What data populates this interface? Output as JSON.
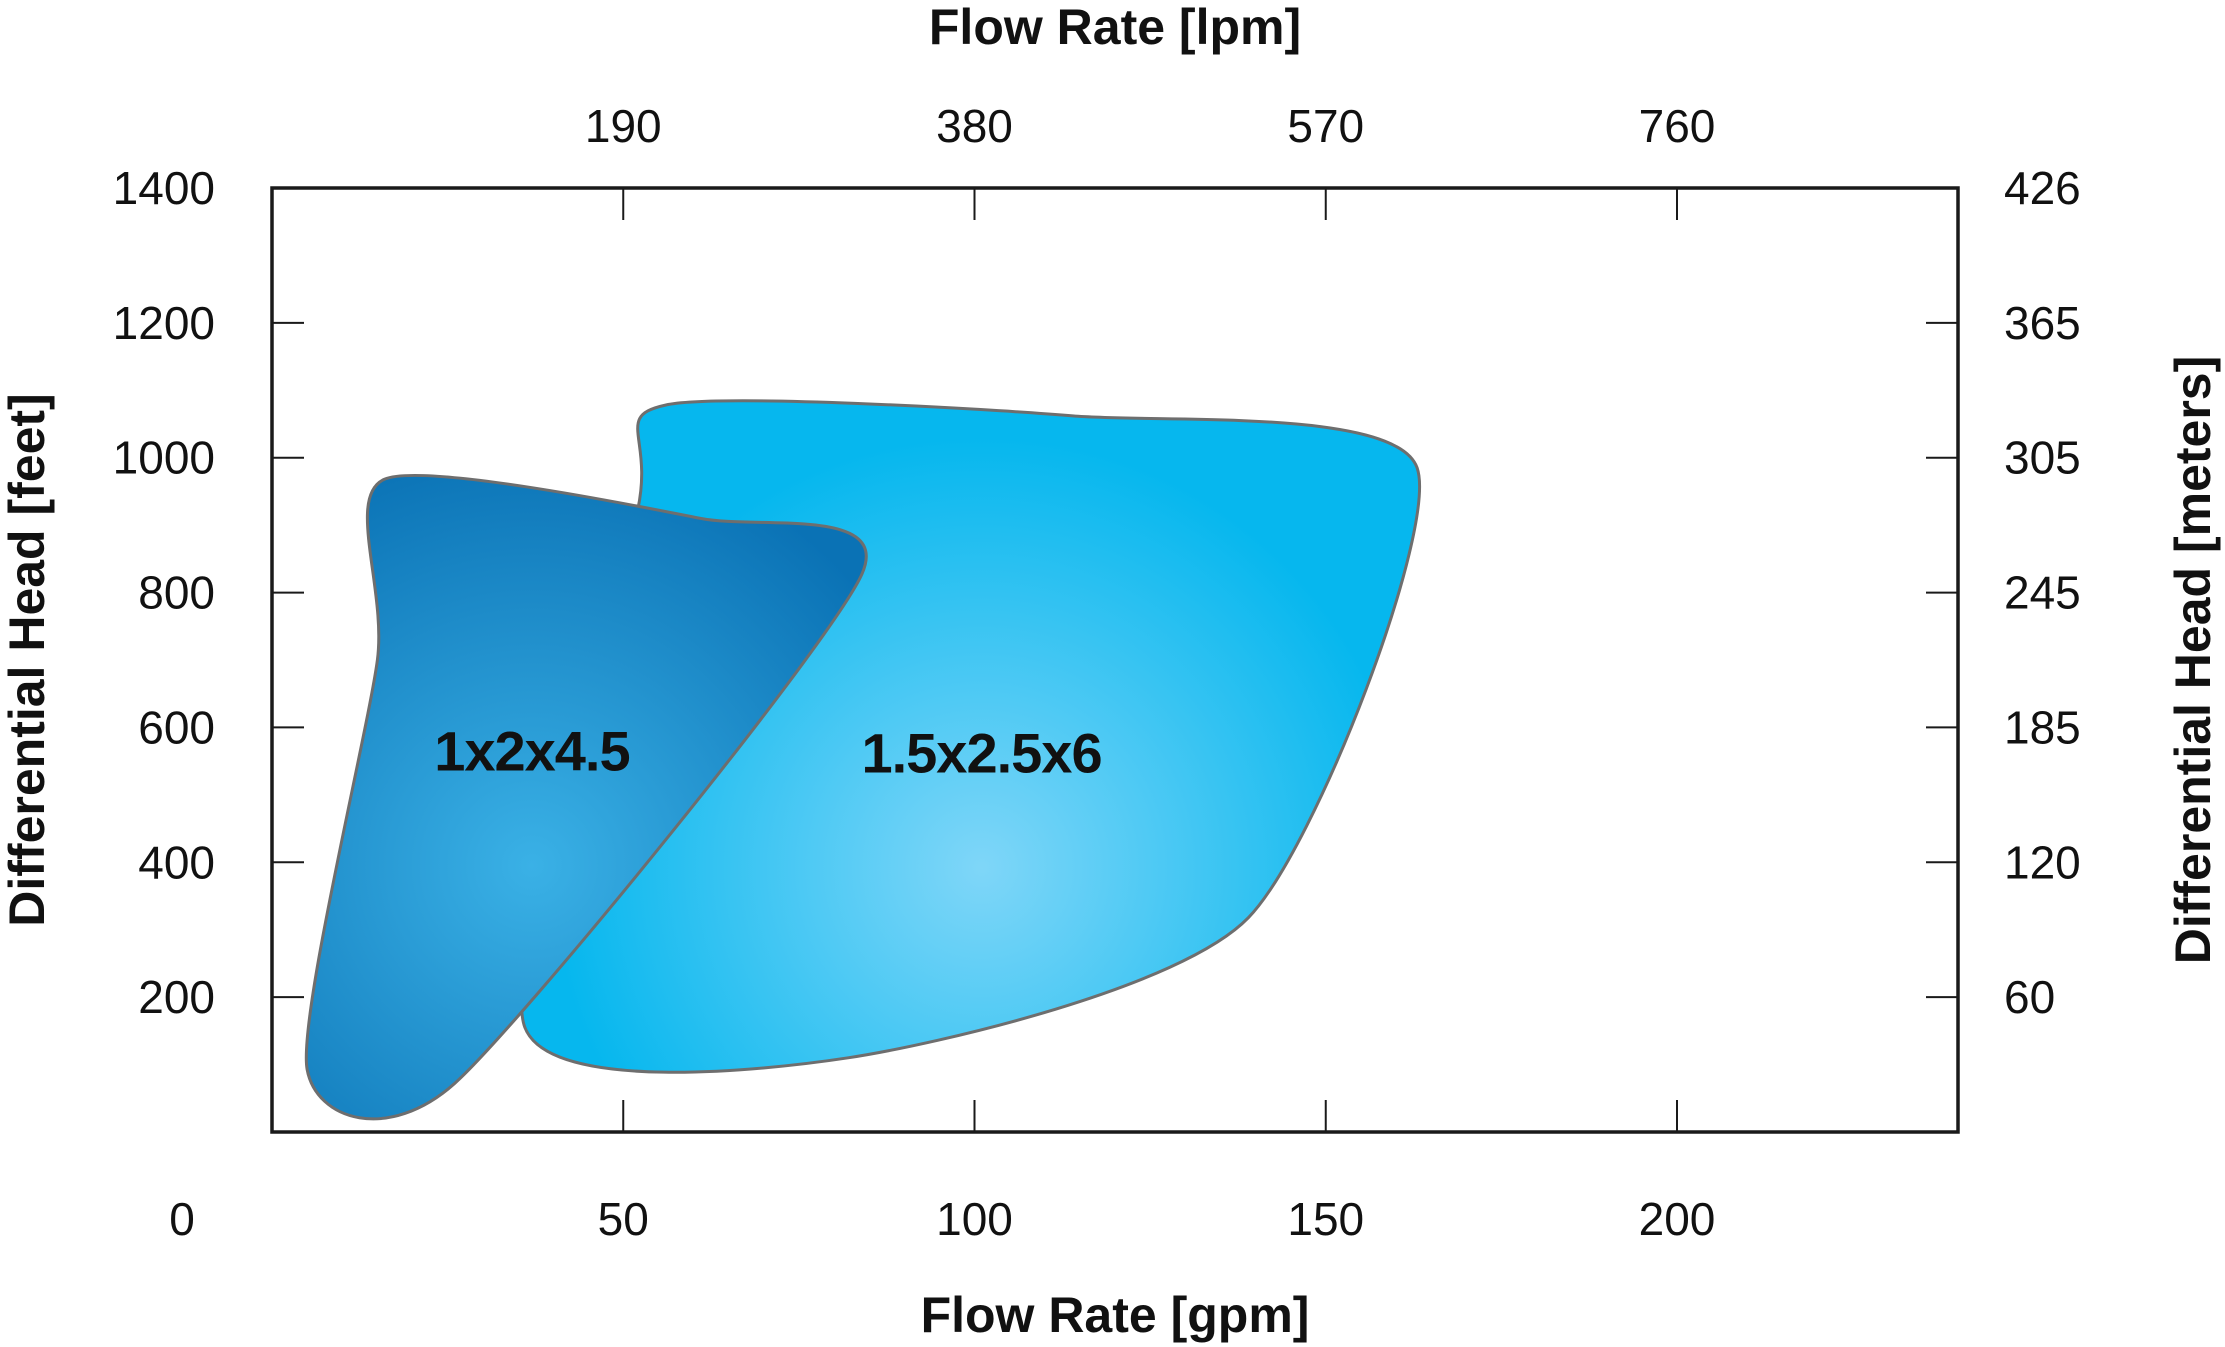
{
  "chart_data": {
    "type": "area",
    "title": "",
    "xlabel": "Flow Rate [gpm]",
    "x2label": "Flow Rate [lpm]",
    "ylabel": "Differential Head [feet]",
    "y2label": "Differential Head  [meters]",
    "xlim": [
      0,
      240
    ],
    "ylim": [
      0,
      1400
    ],
    "grid": false,
    "legend": "none",
    "x_ticks": [
      {
        "value": 0,
        "label": "0"
      },
      {
        "value": 50,
        "label": "50"
      },
      {
        "value": 100,
        "label": "100"
      },
      {
        "value": 150,
        "label": "150"
      },
      {
        "value": 200,
        "label": "200"
      }
    ],
    "x2_ticks": [
      {
        "value": 50,
        "label": "190"
      },
      {
        "value": 100,
        "label": "380"
      },
      {
        "value": 150,
        "label": "570"
      },
      {
        "value": 200,
        "label": "760"
      }
    ],
    "y_ticks": [
      {
        "value": 200,
        "label": "200"
      },
      {
        "value": 400,
        "label": "400"
      },
      {
        "value": 600,
        "label": "600"
      },
      {
        "value": 800,
        "label": "800"
      },
      {
        "value": 1000,
        "label": "1000"
      },
      {
        "value": 1200,
        "label": "1200"
      },
      {
        "value": 1400,
        "label": "1400"
      }
    ],
    "y2_ticks": [
      {
        "value": 200,
        "label": "60"
      },
      {
        "value": 400,
        "label": "120"
      },
      {
        "value": 600,
        "label": "185"
      },
      {
        "value": 800,
        "label": "245"
      },
      {
        "value": 1000,
        "label": "305"
      },
      {
        "value": 1200,
        "label": "365"
      },
      {
        "value": 1400,
        "label": "426"
      }
    ],
    "series": [
      {
        "name": "1.5x2.5x6",
        "color": "#06b7ee",
        "highlight": "#7fd6f8",
        "label_at": [
          101,
          555
        ],
        "points": [
          [
            56,
            1078
          ],
          [
            114,
            1062
          ],
          [
            163,
            985
          ],
          [
            139,
            318
          ],
          [
            82,
            110
          ],
          [
            36,
            155
          ],
          [
            52,
            920
          ]
        ]
      },
      {
        "name": "1x2x4.5",
        "color": "#0a72b5",
        "highlight": "#3ab1e6",
        "label_at": [
          37,
          558
        ],
        "points": [
          [
            16,
            968
          ],
          [
            61,
            910
          ],
          [
            84,
            828
          ],
          [
            26,
            72
          ],
          [
            5,
            93
          ],
          [
            15,
            700
          ]
        ]
      }
    ]
  }
}
